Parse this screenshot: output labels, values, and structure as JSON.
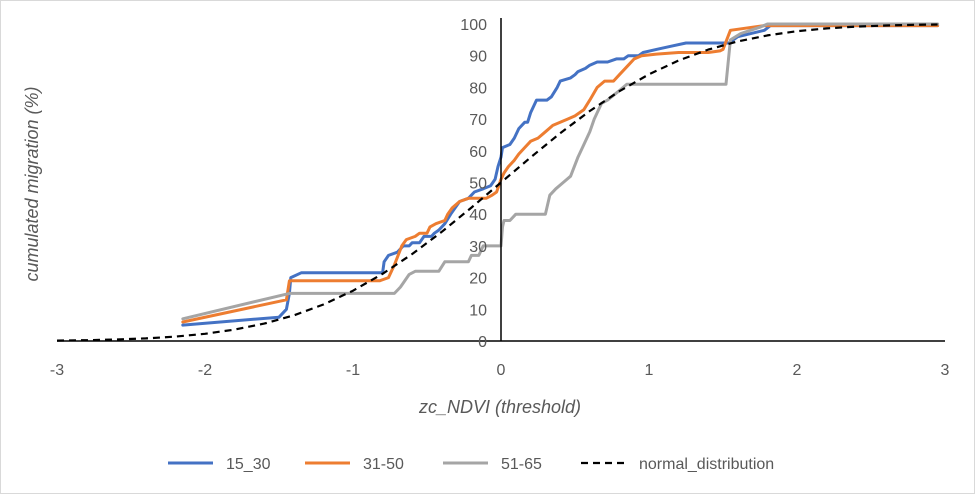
{
  "chart_data": {
    "type": "line",
    "xlabel": "zc_NDVI (threshold)",
    "ylabel": "cumulated migration (%)",
    "xlim": [
      -3,
      3
    ],
    "ylim": [
      0,
      100
    ],
    "x_ticks": [
      "-3",
      "-2",
      "-1",
      "0",
      "1",
      "2",
      "3"
    ],
    "y_ticks": [
      "0",
      "10",
      "20",
      "30",
      "40",
      "50",
      "60",
      "70",
      "80",
      "90",
      "100"
    ],
    "grid": false,
    "legend_position": "bottom",
    "series": [
      {
        "name": "15_30",
        "color": "#4472c4",
        "dash": "solid",
        "points": [
          [
            -2.15,
            5
          ],
          [
            -1.5,
            7.5
          ],
          [
            -1.45,
            10
          ],
          [
            -1.43,
            15
          ],
          [
            -1.42,
            20
          ],
          [
            -1.35,
            21.5
          ],
          [
            -0.8,
            21.5
          ],
          [
            -0.79,
            25
          ],
          [
            -0.76,
            27
          ],
          [
            -0.7,
            28
          ],
          [
            -0.66,
            30
          ],
          [
            -0.62,
            30
          ],
          [
            -0.6,
            31
          ],
          [
            -0.55,
            31
          ],
          [
            -0.52,
            33
          ],
          [
            -0.47,
            33
          ],
          [
            -0.45,
            34
          ],
          [
            -0.42,
            35
          ],
          [
            -0.38,
            37
          ],
          [
            -0.34,
            40
          ],
          [
            -0.28,
            44
          ],
          [
            -0.22,
            45
          ],
          [
            -0.18,
            47
          ],
          [
            -0.12,
            48
          ],
          [
            -0.07,
            49
          ],
          [
            -0.04,
            51
          ],
          [
            -0.02,
            55
          ],
          [
            0.0,
            58
          ],
          [
            0.01,
            61
          ],
          [
            0.06,
            62
          ],
          [
            0.09,
            64
          ],
          [
            0.12,
            67
          ],
          [
            0.16,
            69
          ],
          [
            0.18,
            69
          ],
          [
            0.2,
            72
          ],
          [
            0.24,
            76
          ],
          [
            0.31,
            76
          ],
          [
            0.34,
            77
          ],
          [
            0.38,
            80
          ],
          [
            0.4,
            82
          ],
          [
            0.47,
            83
          ],
          [
            0.5,
            84
          ],
          [
            0.52,
            85
          ],
          [
            0.57,
            86
          ],
          [
            0.6,
            87
          ],
          [
            0.65,
            88
          ],
          [
            0.72,
            88
          ],
          [
            0.78,
            89
          ],
          [
            0.83,
            89
          ],
          [
            0.86,
            90
          ],
          [
            0.93,
            90
          ],
          [
            0.96,
            91
          ],
          [
            1.05,
            92
          ],
          [
            1.15,
            93
          ],
          [
            1.25,
            94
          ],
          [
            1.54,
            94
          ],
          [
            1.6,
            96
          ],
          [
            1.78,
            98
          ],
          [
            1.82,
            99.5
          ],
          [
            2.95,
            99.5
          ]
        ]
      },
      {
        "name": "31-50",
        "color": "#ed7d31",
        "dash": "solid",
        "points": [
          [
            -2.15,
            6
          ],
          [
            -1.45,
            13
          ],
          [
            -1.43,
            19
          ],
          [
            -0.82,
            19
          ],
          [
            -0.76,
            20
          ],
          [
            -0.72,
            24
          ],
          [
            -0.67,
            30
          ],
          [
            -0.64,
            32
          ],
          [
            -0.58,
            33
          ],
          [
            -0.55,
            34
          ],
          [
            -0.5,
            34
          ],
          [
            -0.48,
            36
          ],
          [
            -0.44,
            37
          ],
          [
            -0.38,
            38
          ],
          [
            -0.36,
            40
          ],
          [
            -0.33,
            42
          ],
          [
            -0.28,
            44
          ],
          [
            -0.22,
            45
          ],
          [
            -0.1,
            45
          ],
          [
            -0.06,
            46
          ],
          [
            -0.03,
            47
          ],
          [
            0.0,
            51
          ],
          [
            0.02,
            53
          ],
          [
            0.05,
            55
          ],
          [
            0.09,
            57
          ],
          [
            0.12,
            59
          ],
          [
            0.16,
            61
          ],
          [
            0.2,
            63
          ],
          [
            0.25,
            64
          ],
          [
            0.3,
            66
          ],
          [
            0.35,
            68
          ],
          [
            0.4,
            69
          ],
          [
            0.45,
            70
          ],
          [
            0.5,
            71
          ],
          [
            0.56,
            73
          ],
          [
            0.6,
            76
          ],
          [
            0.65,
            80
          ],
          [
            0.7,
            82
          ],
          [
            0.76,
            82
          ],
          [
            0.8,
            84
          ],
          [
            0.86,
            87
          ],
          [
            0.9,
            89
          ],
          [
            0.95,
            90
          ],
          [
            1.05,
            90.5
          ],
          [
            1.2,
            91
          ],
          [
            1.4,
            91
          ],
          [
            1.48,
            91.5
          ],
          [
            1.5,
            92
          ],
          [
            1.55,
            98
          ],
          [
            1.78,
            99.5
          ],
          [
            2.95,
            99.5
          ]
        ]
      },
      {
        "name": "51-65",
        "color": "#a5a5a5",
        "dash": "solid",
        "points": [
          [
            -2.15,
            7
          ],
          [
            -1.43,
            15
          ],
          [
            -0.72,
            15
          ],
          [
            -0.68,
            17
          ],
          [
            -0.62,
            21
          ],
          [
            -0.58,
            22
          ],
          [
            -0.42,
            22
          ],
          [
            -0.38,
            25
          ],
          [
            -0.22,
            25
          ],
          [
            -0.2,
            27
          ],
          [
            -0.15,
            27
          ],
          [
            -0.12,
            30
          ],
          [
            0.0,
            30
          ],
          [
            0.01,
            36
          ],
          [
            0.02,
            38
          ],
          [
            0.06,
            38
          ],
          [
            0.1,
            40
          ],
          [
            0.3,
            40
          ],
          [
            0.33,
            46
          ],
          [
            0.37,
            48
          ],
          [
            0.42,
            50
          ],
          [
            0.47,
            52
          ],
          [
            0.52,
            58
          ],
          [
            0.56,
            62
          ],
          [
            0.6,
            66
          ],
          [
            0.63,
            70
          ],
          [
            0.68,
            75
          ],
          [
            0.72,
            76
          ],
          [
            0.8,
            79
          ],
          [
            0.85,
            81
          ],
          [
            1.52,
            81
          ],
          [
            1.55,
            95
          ],
          [
            1.62,
            97
          ],
          [
            1.75,
            99
          ],
          [
            1.8,
            100
          ],
          [
            2.95,
            100
          ]
        ]
      },
      {
        "name": "normal_distribution",
        "color": "#000000",
        "dash": "dashed",
        "points": [
          [
            -3,
            0.13
          ],
          [
            -2.8,
            0.26
          ],
          [
            -2.6,
            0.47
          ],
          [
            -2.4,
            0.82
          ],
          [
            -2.2,
            1.39
          ],
          [
            -2.0,
            2.28
          ],
          [
            -1.8,
            3.59
          ],
          [
            -1.6,
            5.48
          ],
          [
            -1.4,
            8.08
          ],
          [
            -1.2,
            11.51
          ],
          [
            -1.0,
            15.87
          ],
          [
            -0.8,
            21.19
          ],
          [
            -0.6,
            27.43
          ],
          [
            -0.4,
            34.46
          ],
          [
            -0.2,
            42.07
          ],
          [
            0.0,
            50.0
          ],
          [
            0.2,
            57.93
          ],
          [
            0.4,
            65.54
          ],
          [
            0.6,
            72.57
          ],
          [
            0.8,
            78.81
          ],
          [
            1.0,
            84.13
          ],
          [
            1.2,
            88.49
          ],
          [
            1.4,
            91.92
          ],
          [
            1.6,
            94.52
          ],
          [
            1.8,
            96.41
          ],
          [
            2.0,
            97.72
          ],
          [
            2.2,
            98.61
          ],
          [
            2.4,
            99.18
          ],
          [
            2.6,
            99.53
          ],
          [
            2.8,
            99.74
          ],
          [
            2.95,
            99.84
          ]
        ]
      }
    ]
  }
}
